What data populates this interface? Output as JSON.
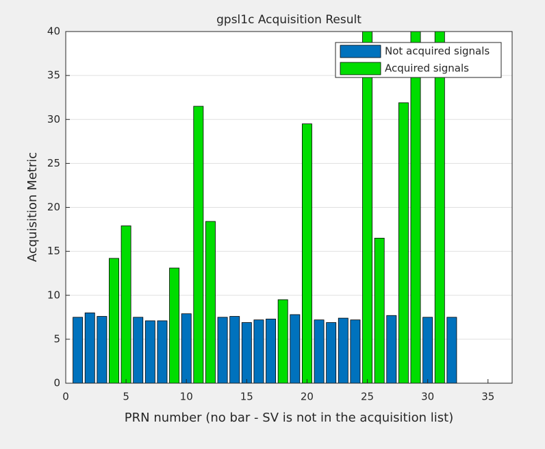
{
  "chart_data": {
    "type": "bar",
    "title": "gpsl1c Acquisition Result",
    "xlabel": "PRN number (no bar - SV is not in the acquisition list)",
    "ylabel": "Acquisition Metric",
    "x": [
      1,
      2,
      3,
      4,
      5,
      6,
      7,
      8,
      9,
      10,
      11,
      12,
      13,
      14,
      15,
      16,
      17,
      18,
      19,
      20,
      21,
      22,
      23,
      24,
      25,
      26,
      27,
      28,
      29,
      30,
      31,
      32
    ],
    "series": [
      {
        "name": "Not acquired signals",
        "color": "#0072bd",
        "values": [
          7.5,
          8.0,
          7.6,
          null,
          null,
          7.5,
          7.1,
          7.1,
          null,
          7.9,
          null,
          null,
          7.5,
          7.6,
          6.9,
          7.2,
          7.3,
          null,
          7.8,
          null,
          7.2,
          6.9,
          7.4,
          7.2,
          null,
          null,
          7.7,
          null,
          null,
          7.5,
          null,
          7.5
        ]
      },
      {
        "name": "Acquired signals",
        "color": "#00dd00",
        "values": [
          null,
          null,
          null,
          14.2,
          17.9,
          null,
          null,
          null,
          13.1,
          null,
          31.5,
          18.4,
          null,
          null,
          null,
          null,
          null,
          9.5,
          null,
          29.5,
          null,
          null,
          null,
          null,
          42,
          16.5,
          null,
          31.9,
          42,
          null,
          42,
          null
        ]
      }
    ],
    "xlim": [
      0,
      37
    ],
    "xticks": [
      0,
      5,
      10,
      15,
      20,
      25,
      30,
      35
    ],
    "ylim": [
      0,
      40
    ],
    "yticks": [
      0,
      5,
      10,
      15,
      20,
      25,
      30,
      35,
      40
    ],
    "ygrid": true,
    "legend": "top-right"
  }
}
